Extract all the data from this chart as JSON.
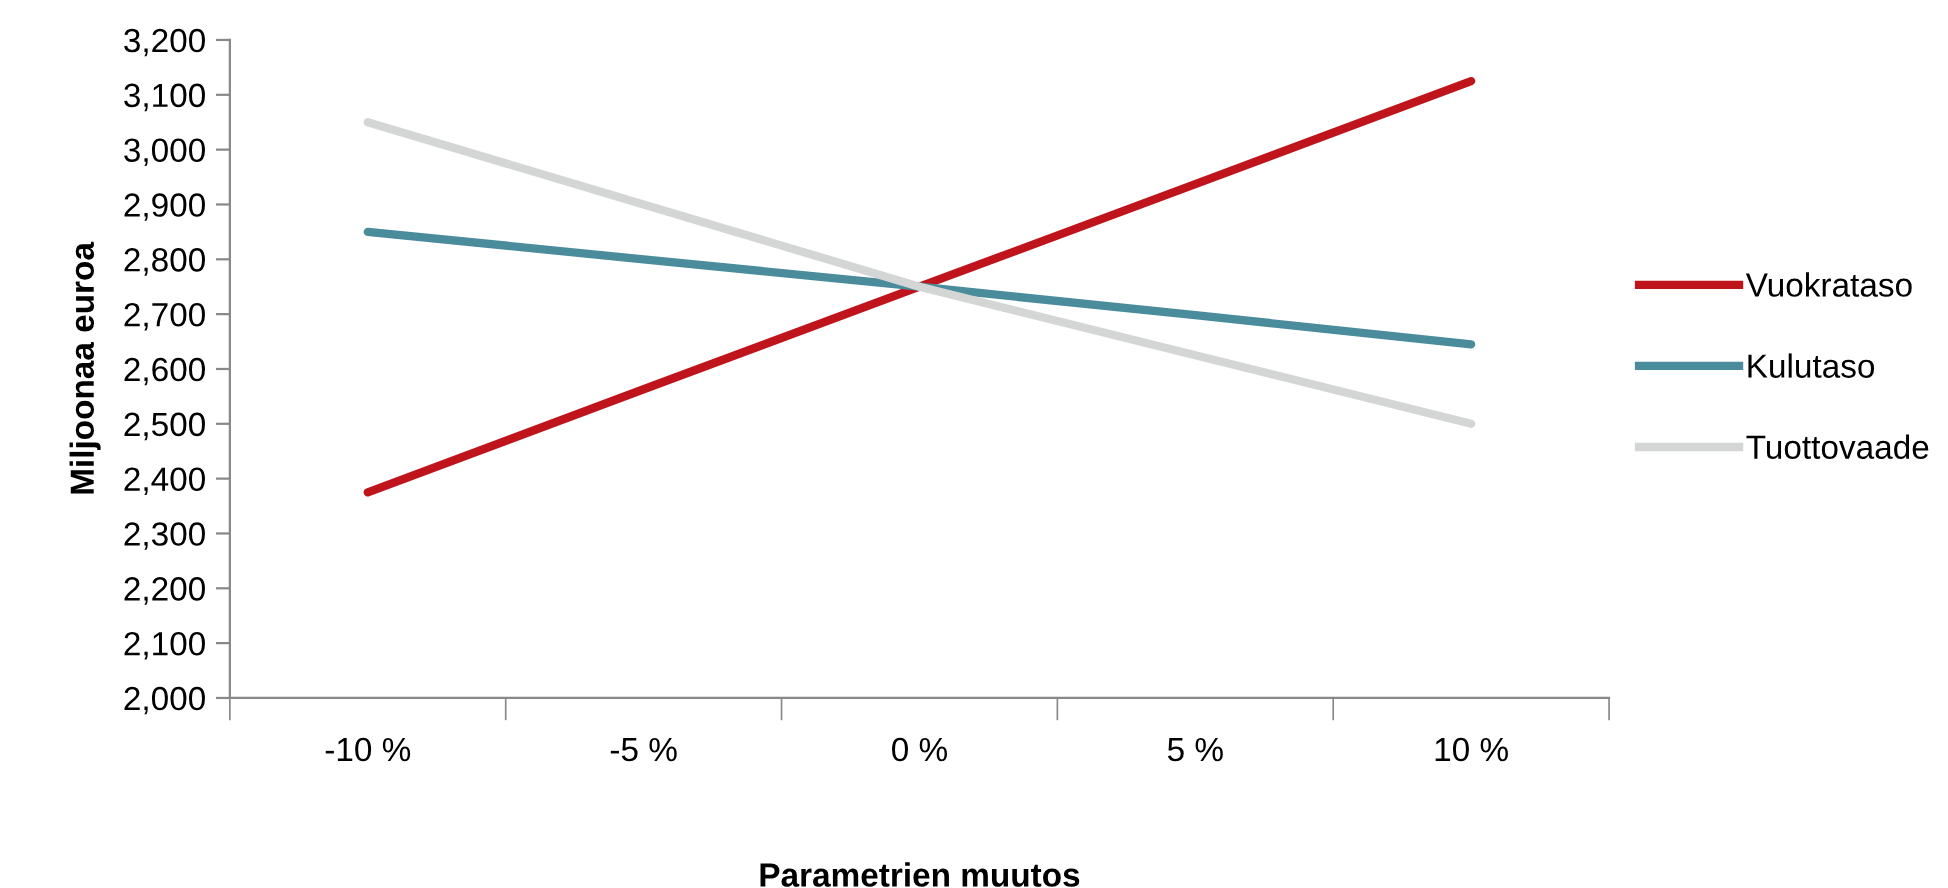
{
  "chart_data": {
    "type": "line",
    "xlabel": "Parametrien muutos",
    "ylabel": "Miljoonaa euroa",
    "categories": [
      "-10 %",
      "-5 %",
      "0 %",
      "5 %",
      "10 %"
    ],
    "series": [
      {
        "name": "Vuokrataso",
        "color": "#c0141c",
        "values": [
          2375,
          2563,
          2750,
          2937,
          3125
        ]
      },
      {
        "name": "Kulutaso",
        "color": "#4a8c9c",
        "values": [
          2850,
          2800,
          2750,
          2698,
          2645
        ]
      },
      {
        "name": "Tuottovaade",
        "color": "#d4d6d6",
        "values": [
          3050,
          2900,
          2750,
          2625,
          2500
        ]
      }
    ],
    "ylim": [
      2000,
      3200
    ],
    "yticks": [
      {
        "value": 2000,
        "label": "2,000"
      },
      {
        "value": 2100,
        "label": "2,100"
      },
      {
        "value": 2200,
        "label": "2,200"
      },
      {
        "value": 2300,
        "label": "2,300"
      },
      {
        "value": 2400,
        "label": "2,400"
      },
      {
        "value": 2500,
        "label": "2,500"
      },
      {
        "value": 2600,
        "label": "2,600"
      },
      {
        "value": 2700,
        "label": "2,700"
      },
      {
        "value": 2800,
        "label": "2,800"
      },
      {
        "value": 2900,
        "label": "2,900"
      },
      {
        "value": 3000,
        "label": "3,000"
      },
      {
        "value": 3100,
        "label": "3,100"
      },
      {
        "value": 3200,
        "label": "3,200"
      }
    ],
    "grid": false,
    "legend": "right",
    "marker": "none",
    "line_style": "solid"
  }
}
